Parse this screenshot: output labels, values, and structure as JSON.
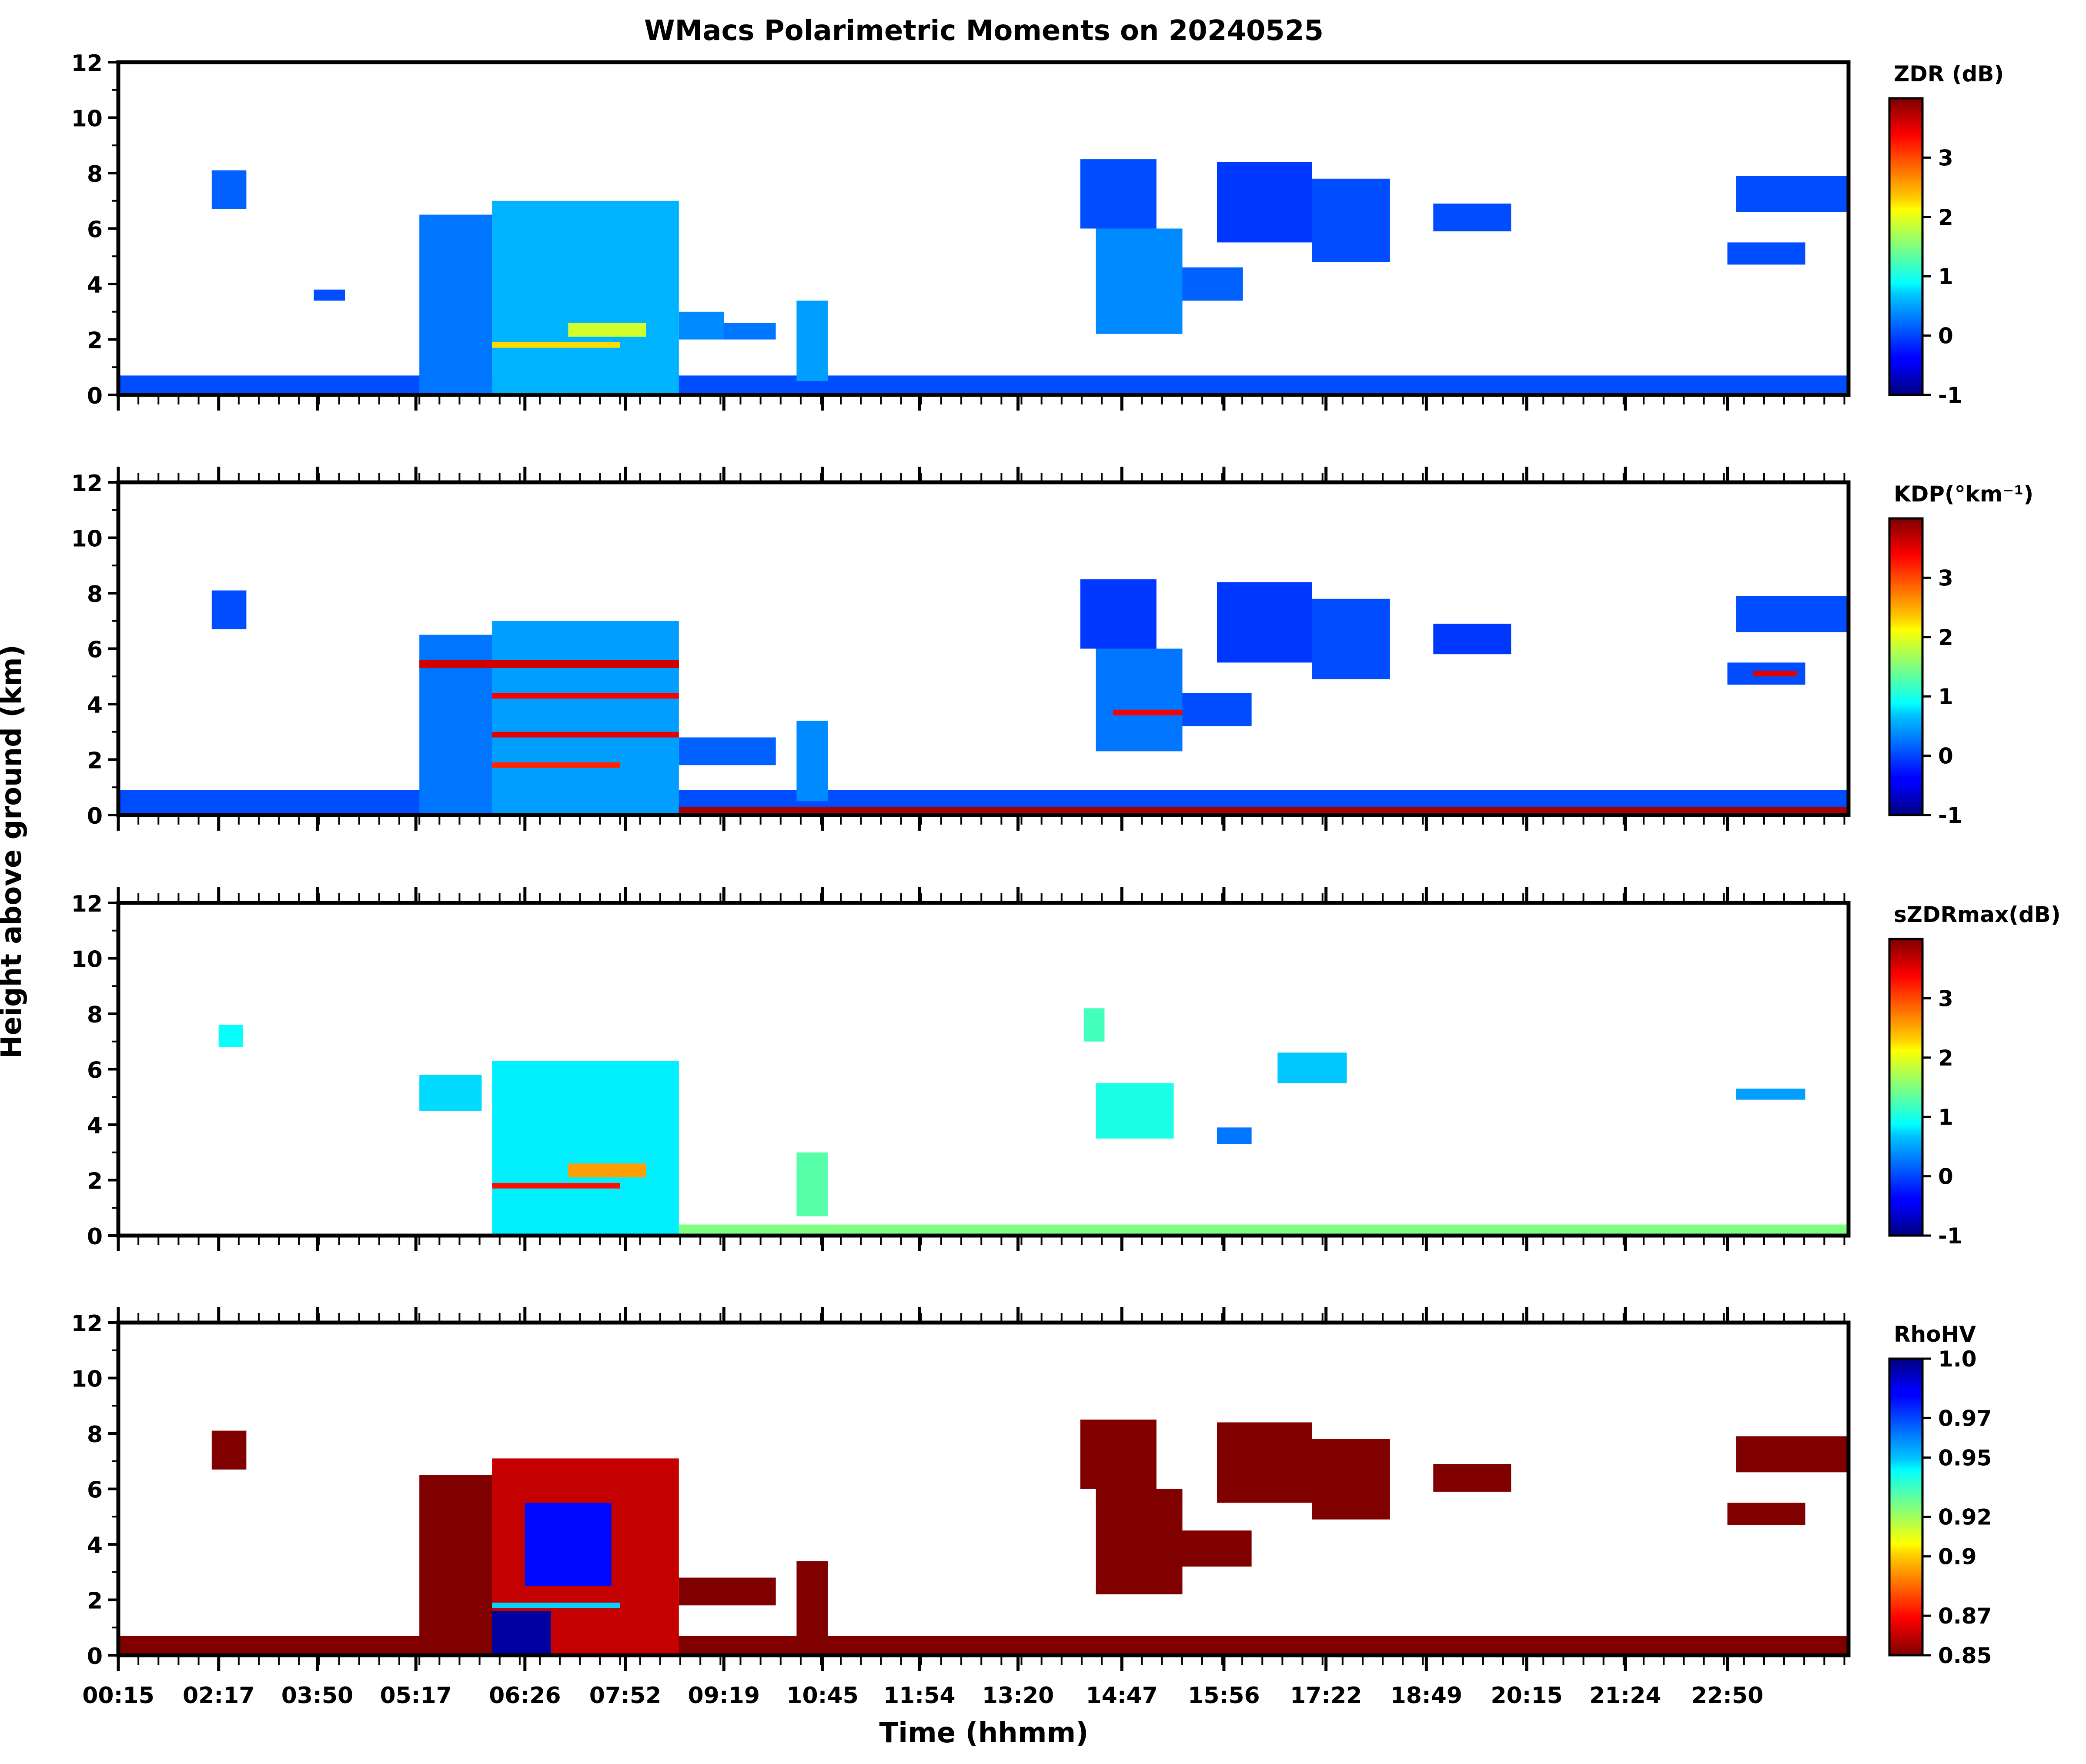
{
  "chart_data": {
    "type": "heatmap",
    "title": "WMacs Polarimetric Moments on 20240525",
    "xlabel": "Time (hhmm)",
    "ylabel": "Height above ground (km)",
    "x_tick_labels": [
      "00:15",
      "02:17",
      "03:50",
      "05:17",
      "06:26",
      "07:52",
      "09:19",
      "10:45",
      "11:54",
      "13:20",
      "14:47",
      "15:56",
      "17:22",
      "18:49",
      "20:15",
      "21:24",
      "22:50"
    ],
    "y_ticks": [
      0,
      2,
      4,
      6,
      8,
      10,
      12
    ],
    "ylim": [
      0,
      12
    ],
    "x_index_range": [
      0,
      100
    ],
    "x_tick_positions": [
      0,
      5.8,
      11.5,
      17.2,
      23.5,
      29.3,
      35,
      40.7,
      46.3,
      52,
      58,
      63.9,
      69.8,
      75.6,
      81.4,
      87.1,
      93
    ],
    "panels": [
      {
        "id": "zdr",
        "colorbar_label": "ZDR (dB)",
        "cmap": "jet",
        "vmin": -1,
        "vmax": 4,
        "colorbar_ticks": [
          -1,
          0,
          1,
          2,
          3
        ],
        "colorbar_tick_labels": [
          "-1",
          "0",
          "1",
          "2",
          "3"
        ],
        "echoes": [
          {
            "x0": 0,
            "x1": 100,
            "y0": 0,
            "y1": 0.7,
            "v": 0.0
          },
          {
            "x0": 5.4,
            "x1": 7.4,
            "y0": 6.7,
            "y1": 8.1,
            "v": 0.1
          },
          {
            "x0": 17.4,
            "x1": 21.6,
            "y0": 0,
            "y1": 6.5,
            "v": 0.2
          },
          {
            "x0": 21.6,
            "x1": 32.4,
            "y0": 0,
            "y1": 7.0,
            "v": 0.5
          },
          {
            "x0": 21.6,
            "x1": 29.0,
            "y0": 1.7,
            "y1": 1.9,
            "v": 2.3
          },
          {
            "x0": 26.0,
            "x1": 30.5,
            "y0": 2.1,
            "y1": 2.6,
            "v": 1.9
          },
          {
            "x0": 32.4,
            "x1": 35.0,
            "y0": 2.0,
            "y1": 3.0,
            "v": 0.3
          },
          {
            "x0": 35.0,
            "x1": 38.0,
            "y0": 2.0,
            "y1": 2.6,
            "v": 0.2
          },
          {
            "x0": 39.2,
            "x1": 41.0,
            "y0": 0.5,
            "y1": 3.4,
            "v": 0.4
          },
          {
            "x0": 11.3,
            "x1": 13.1,
            "y0": 3.4,
            "y1": 3.8,
            "v": 0.0
          },
          {
            "x0": 55.6,
            "x1": 60.0,
            "y0": 6.0,
            "y1": 8.5,
            "v": 0.0
          },
          {
            "x0": 56.5,
            "x1": 61.5,
            "y0": 2.2,
            "y1": 6.0,
            "v": 0.3
          },
          {
            "x0": 61.5,
            "x1": 65.0,
            "y0": 3.4,
            "y1": 4.6,
            "v": 0.1
          },
          {
            "x0": 63.5,
            "x1": 69.0,
            "y0": 5.5,
            "y1": 8.4,
            "v": -0.1
          },
          {
            "x0": 69.0,
            "x1": 73.5,
            "y0": 4.8,
            "y1": 7.8,
            "v": 0.0
          },
          {
            "x0": 76.0,
            "x1": 80.5,
            "y0": 5.9,
            "y1": 6.9,
            "v": 0.0
          },
          {
            "x0": 93.5,
            "x1": 100,
            "y0": 6.6,
            "y1": 7.9,
            "v": 0.0
          },
          {
            "x0": 93.0,
            "x1": 97.5,
            "y0": 4.7,
            "y1": 5.5,
            "v": 0.0
          }
        ]
      },
      {
        "id": "kdp",
        "colorbar_label": "KDP(°km⁻¹)",
        "cmap": "jet",
        "vmin": -1,
        "vmax": 4,
        "colorbar_ticks": [
          -1,
          0,
          1,
          2,
          3
        ],
        "colorbar_tick_labels": [
          "-1",
          "0",
          "1",
          "2",
          "3"
        ],
        "echoes": [
          {
            "x0": 0,
            "x1": 100,
            "y0": 0,
            "y1": 0.9,
            "v": 0.0
          },
          {
            "x0": 32.0,
            "x1": 100,
            "y0": 0,
            "y1": 0.3,
            "v": 3.8
          },
          {
            "x0": 5.4,
            "x1": 7.4,
            "y0": 6.7,
            "y1": 8.1,
            "v": 0.0
          },
          {
            "x0": 17.4,
            "x1": 21.6,
            "y0": 0,
            "y1": 6.5,
            "v": 0.2
          },
          {
            "x0": 21.6,
            "x1": 32.4,
            "y0": 0,
            "y1": 7.0,
            "v": 0.4
          },
          {
            "x0": 17.4,
            "x1": 32.4,
            "y0": 5.3,
            "y1": 5.6,
            "v": 3.6
          },
          {
            "x0": 21.6,
            "x1": 32.4,
            "y0": 4.2,
            "y1": 4.4,
            "v": 3.4
          },
          {
            "x0": 21.6,
            "x1": 32.4,
            "y0": 2.8,
            "y1": 3.0,
            "v": 3.5
          },
          {
            "x0": 21.6,
            "x1": 29.0,
            "y0": 1.7,
            "y1": 1.9,
            "v": 3.2
          },
          {
            "x0": 32.4,
            "x1": 38.0,
            "y0": 1.8,
            "y1": 2.8,
            "v": 0.1
          },
          {
            "x0": 39.2,
            "x1": 41.0,
            "y0": 0.5,
            "y1": 3.4,
            "v": 0.3
          },
          {
            "x0": 55.6,
            "x1": 60.0,
            "y0": 6.0,
            "y1": 8.5,
            "v": -0.1
          },
          {
            "x0": 56.5,
            "x1": 61.5,
            "y0": 2.3,
            "y1": 6.0,
            "v": 0.2
          },
          {
            "x0": 57.5,
            "x1": 61.5,
            "y0": 3.6,
            "y1": 3.8,
            "v": 3.4
          },
          {
            "x0": 61.5,
            "x1": 65.5,
            "y0": 3.2,
            "y1": 4.4,
            "v": 0.0
          },
          {
            "x0": 63.5,
            "x1": 69.0,
            "y0": 5.5,
            "y1": 8.4,
            "v": -0.1
          },
          {
            "x0": 69.0,
            "x1": 73.5,
            "y0": 4.9,
            "y1": 7.8,
            "v": 0.0
          },
          {
            "x0": 76.0,
            "x1": 80.5,
            "y0": 5.8,
            "y1": 6.9,
            "v": -0.1
          },
          {
            "x0": 93.5,
            "x1": 100,
            "y0": 6.6,
            "y1": 7.9,
            "v": 0.0
          },
          {
            "x0": 93.0,
            "x1": 97.5,
            "y0": 4.7,
            "y1": 5.5,
            "v": 0.0
          },
          {
            "x0": 94.5,
            "x1": 97.0,
            "y0": 5.0,
            "y1": 5.2,
            "v": 3.5
          }
        ]
      },
      {
        "id": "szdrmax",
        "colorbar_label": "sZDRmax(dB)",
        "cmap": "jet",
        "vmin": -1,
        "vmax": 4,
        "colorbar_ticks": [
          -1,
          0,
          1,
          2,
          3
        ],
        "colorbar_tick_labels": [
          "-1",
          "0",
          "1",
          "2",
          "3"
        ],
        "echoes": [
          {
            "x0": 32.4,
            "x1": 100,
            "y0": 0,
            "y1": 0.4,
            "v": 1.5
          },
          {
            "x0": 17.4,
            "x1": 21.0,
            "y0": 4.5,
            "y1": 5.8,
            "v": 0.7
          },
          {
            "x0": 21.6,
            "x1": 32.4,
            "y0": 0,
            "y1": 6.3,
            "v": 0.8
          },
          {
            "x0": 21.6,
            "x1": 29.0,
            "y0": 1.7,
            "y1": 1.9,
            "v": 3.3
          },
          {
            "x0": 26.0,
            "x1": 30.5,
            "y0": 2.1,
            "y1": 2.6,
            "v": 2.6
          },
          {
            "x0": 39.2,
            "x1": 41.0,
            "y0": 0.7,
            "y1": 3.0,
            "v": 1.3
          },
          {
            "x0": 5.8,
            "x1": 7.2,
            "y0": 6.8,
            "y1": 7.6,
            "v": 0.9
          },
          {
            "x0": 56.5,
            "x1": 61.0,
            "y0": 3.5,
            "y1": 5.5,
            "v": 1.0
          },
          {
            "x0": 55.8,
            "x1": 57.0,
            "y0": 7.0,
            "y1": 8.2,
            "v": 1.2
          },
          {
            "x0": 63.5,
            "x1": 65.5,
            "y0": 3.3,
            "y1": 3.9,
            "v": 0.2
          },
          {
            "x0": 67.0,
            "x1": 71.0,
            "y0": 5.5,
            "y1": 6.6,
            "v": 0.6
          },
          {
            "x0": 93.5,
            "x1": 97.5,
            "y0": 4.9,
            "y1": 5.3,
            "v": 0.4
          }
        ]
      },
      {
        "id": "rhohv",
        "colorbar_label": "RhoHV",
        "cmap": "jet_r",
        "vmin": 0.85,
        "vmax": 1.0,
        "colorbar_ticks": [
          1.0,
          0.97,
          0.95,
          0.92,
          0.9,
          0.87,
          0.85
        ],
        "colorbar_tick_labels": [
          "1.0",
          "0.97",
          "0.95",
          "0.92",
          "0.9",
          "0.87",
          "0.85"
        ],
        "echoes": [
          {
            "x0": 0,
            "x1": 100,
            "y0": 0,
            "y1": 0.7,
            "v": 0.85
          },
          {
            "x0": 5.4,
            "x1": 7.4,
            "y0": 6.7,
            "y1": 8.1,
            "v": 0.85
          },
          {
            "x0": 17.4,
            "x1": 21.6,
            "y0": 0,
            "y1": 6.5,
            "v": 0.85
          },
          {
            "x0": 21.6,
            "x1": 32.4,
            "y0": 0,
            "y1": 7.1,
            "v": 0.86
          },
          {
            "x0": 21.6,
            "x1": 25.0,
            "y0": 0,
            "y1": 1.6,
            "v": 0.995
          },
          {
            "x0": 23.5,
            "x1": 28.5,
            "y0": 2.5,
            "y1": 5.5,
            "v": 0.98
          },
          {
            "x0": 21.6,
            "x1": 29.0,
            "y0": 1.7,
            "y1": 1.9,
            "v": 0.95
          },
          {
            "x0": 32.4,
            "x1": 38.0,
            "y0": 1.8,
            "y1": 2.8,
            "v": 0.85
          },
          {
            "x0": 39.2,
            "x1": 41.0,
            "y0": 0.5,
            "y1": 3.4,
            "v": 0.85
          },
          {
            "x0": 55.6,
            "x1": 60.0,
            "y0": 6.0,
            "y1": 8.5,
            "v": 0.85
          },
          {
            "x0": 56.5,
            "x1": 61.5,
            "y0": 2.2,
            "y1": 6.0,
            "v": 0.85
          },
          {
            "x0": 61.5,
            "x1": 65.5,
            "y0": 3.2,
            "y1": 4.5,
            "v": 0.85
          },
          {
            "x0": 63.5,
            "x1": 69.0,
            "y0": 5.5,
            "y1": 8.4,
            "v": 0.85
          },
          {
            "x0": 69.0,
            "x1": 73.5,
            "y0": 4.9,
            "y1": 7.8,
            "v": 0.85
          },
          {
            "x0": 76.0,
            "x1": 80.5,
            "y0": 5.9,
            "y1": 6.9,
            "v": 0.85
          },
          {
            "x0": 93.5,
            "x1": 100,
            "y0": 6.6,
            "y1": 7.9,
            "v": 0.85
          },
          {
            "x0": 93.0,
            "x1": 97.5,
            "y0": 4.7,
            "y1": 5.5,
            "v": 0.85
          }
        ]
      }
    ]
  }
}
